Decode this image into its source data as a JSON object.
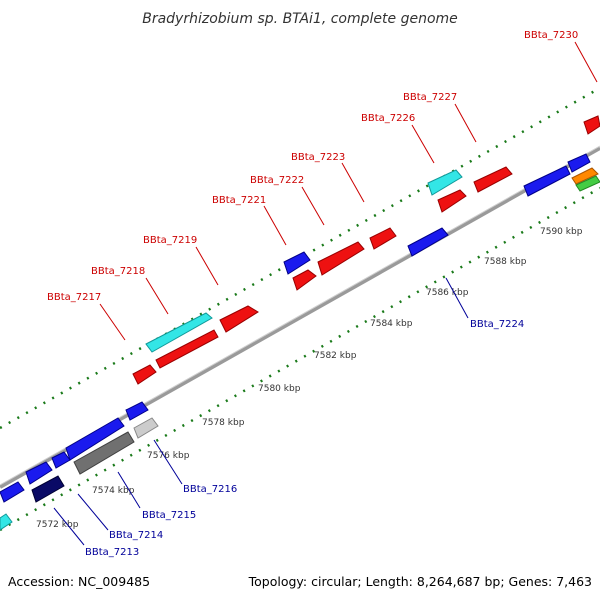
{
  "title": "Bradyrhizobium sp. BTAi1, complete genome",
  "footer": {
    "accession": "Accession: NC_009485",
    "summary": "Topology: circular; Length: 8,264,687 bp; Genes: 7,463"
  },
  "colors": {
    "forward_label": "#cc0000",
    "reverse_label": "#000099",
    "backbone": "#888888",
    "tick": "#006600"
  },
  "ticks": [
    "7572 kbp",
    "7574 kbp",
    "7576 kbp",
    "7578 kbp",
    "7580 kbp",
    "7582 kbp",
    "7584 kbp",
    "7586 kbp",
    "7588 kbp",
    "7590 kbp"
  ],
  "labels": {
    "forward": [
      "BBta_7217",
      "BBta_7218",
      "BBta_7219",
      "BBta_7221",
      "BBta_7222",
      "BBta_7223",
      "BBta_7226",
      "BBta_7227",
      "BBta_7230"
    ],
    "reverse": [
      "BBta_7213",
      "BBta_7214",
      "BBta_7215",
      "BBta_7216",
      "BBta_7224"
    ]
  }
}
